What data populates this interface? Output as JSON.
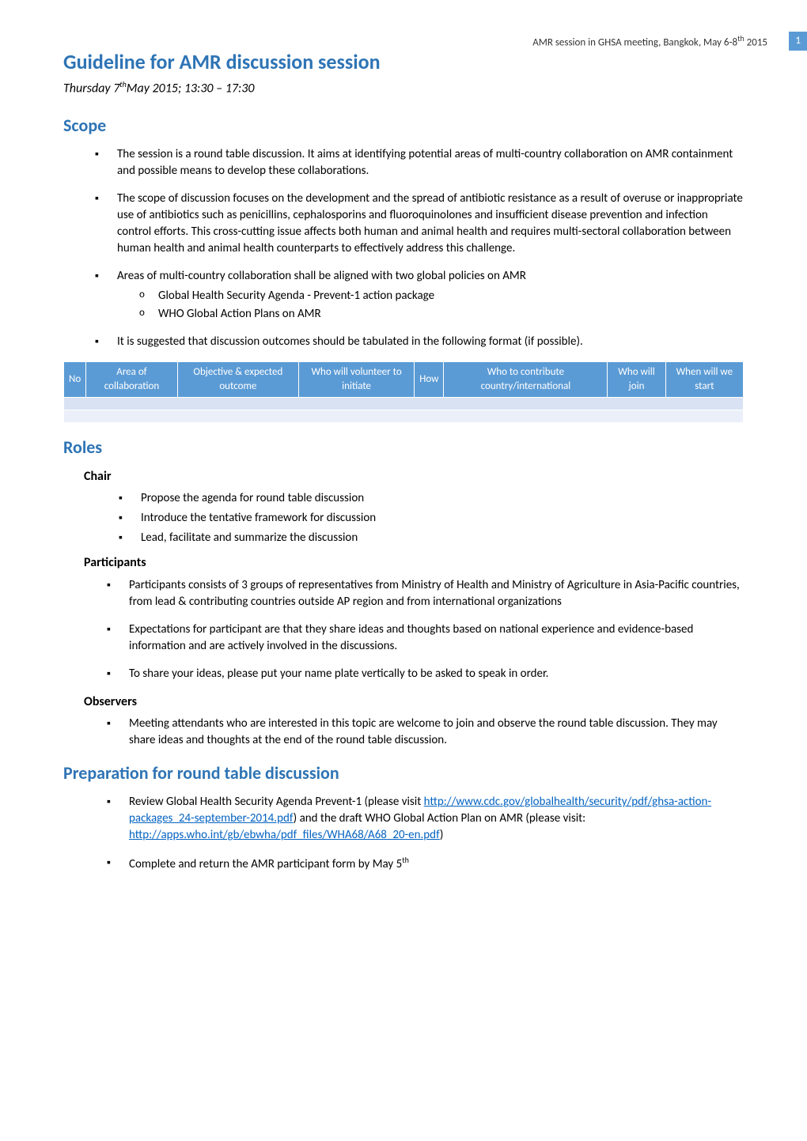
{
  "header": {
    "text": "AMR session in GHSA meeting, Bangkok, May 6-8",
    "suffix": "th",
    "year": " 2015",
    "page": "1"
  },
  "title": "Guideline for AMR discussion session",
  "subtitle_prefix": "Thursday 7",
  "subtitle_sup": "th",
  "subtitle_suffix": "May 2015; 13:30 – 17:30",
  "scope": {
    "heading": "Scope",
    "items": [
      "The session is a round table discussion.  It aims at identifying potential areas of multi-country collaboration on AMR containment and possible means to develop these collaborations.",
      "The scope of discussion focuses on the development and the spread of antibiotic resistance as a result of overuse or inappropriate use of antibiotics such as penicillins, cephalosporins and fluoroquinolones and insufficient disease prevention and infection control efforts.  This cross-cutting issue affects both human and animal health and requires multi-sectoral collaboration between human health and animal health counterparts to effectively address this challenge.",
      "Areas of multi-country collaboration shall be aligned with two global policies on AMR",
      "It is suggested that discussion outcomes should be tabulated in the following format (if possible)."
    ],
    "subitems": [
      "Global Health Security Agenda - Prevent-1 action package",
      "WHO Global Action Plans on AMR"
    ]
  },
  "table": {
    "headers": [
      "No",
      "Area of collaboration",
      "Objective & expected outcome",
      "Who will volunteer to initiate",
      "How",
      "Who to contribute country/international",
      "Who will join",
      "When will we start"
    ],
    "header_bg": "#5b9bd5",
    "header_color": "#ffffff",
    "row1_bg": "#d9e2f3",
    "row2_bg": "#eaeff9"
  },
  "roles": {
    "heading": "Roles",
    "chair": {
      "label": "Chair",
      "items": [
        "Propose the agenda for round table discussion",
        "Introduce the tentative framework for discussion",
        "Lead, facilitate and summarize the discussion"
      ]
    },
    "participants": {
      "label": "Participants",
      "items": [
        "Participants consists of 3 groups of representatives from Ministry of Health and Ministry of Agriculture in Asia-Pacific countries, from lead & contributing countries outside AP region and from international organizations",
        "Expectations for participant are that they share ideas and thoughts based on national experience and evidence-based information and are actively involved in the discussions.",
        "To share your ideas, please put your name plate vertically to be asked to speak in order."
      ]
    },
    "observers": {
      "label": "Observers",
      "items": [
        "Meeting attendants who are interested in this topic are welcome to join and observe the round table discussion. They may share ideas and thoughts at the end of the round table discussion."
      ]
    }
  },
  "prep": {
    "heading": "Preparation for round table discussion",
    "item1_prefix": "Review Global Health Security Agenda Prevent-1 (please visit ",
    "link1": "http://www.cdc.gov/globalhealth/security/pdf/ghsa-action-packages_24-september-2014.pdf",
    "item1_mid": ") and the draft WHO Global Action Plan on AMR  (please visit: ",
    "link2": "http://apps.who.int/gb/ebwha/pdf_files/WHA68/A68_20-en.pdf",
    "item1_suffix": ")",
    "item2_prefix": "Complete and return the AMR participant form by May 5",
    "item2_sup": "th"
  },
  "colors": {
    "heading_blue": "#2e74b5",
    "link_blue": "#0563c1",
    "table_header_bg": "#5b9bd5"
  }
}
